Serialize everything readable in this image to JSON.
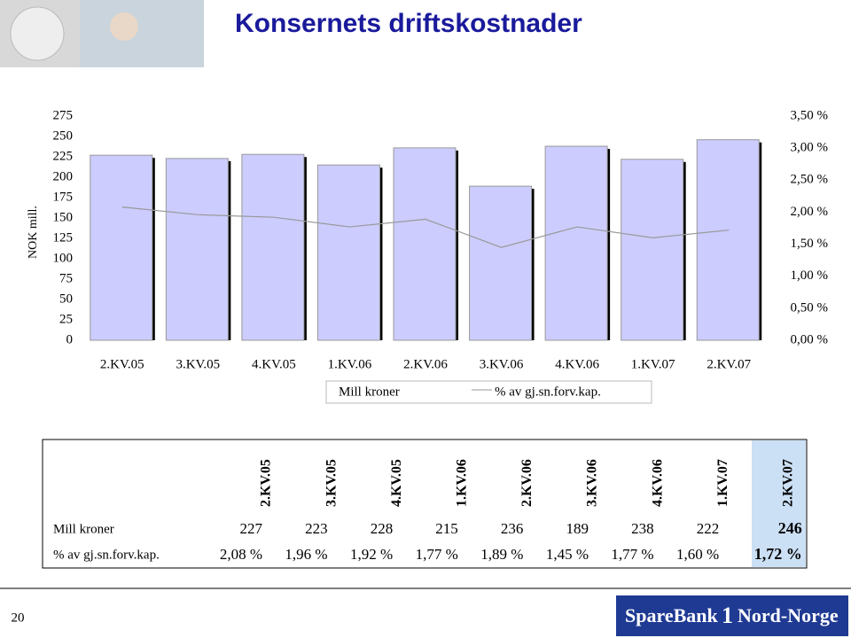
{
  "header": {
    "title": "Konsernets driftskostnader"
  },
  "chart_data": {
    "type": "bar",
    "categories": [
      "2.KV.05",
      "3.KV.05",
      "4.KV.05",
      "1.KV.06",
      "2.KV.06",
      "3.KV.06",
      "4.KV.06",
      "1.KV.07",
      "2.KV.07"
    ],
    "y_label": "NOK mill.",
    "series": [
      {
        "name": "Mill kroner",
        "type": "bar",
        "color": "#ccccff",
        "values": [
          227,
          223,
          228,
          215,
          236,
          189,
          238,
          222,
          246
        ]
      },
      {
        "name": "% av gj.sn.forv.kap.",
        "type": "line",
        "axis": "y2",
        "color": "#999999",
        "values": [
          2.08,
          1.96,
          1.92,
          1.77,
          1.89,
          1.45,
          1.77,
          1.6,
          1.72
        ]
      }
    ],
    "ylim": [
      0,
      275
    ],
    "yticks": [
      0,
      25,
      50,
      75,
      100,
      125,
      150,
      175,
      200,
      225,
      250,
      275
    ],
    "y2lim": [
      0,
      3.5
    ],
    "y2ticks": [
      {
        "value": 0,
        "label": "0,00 %"
      },
      {
        "value": 0.5,
        "label": "0,50 %"
      },
      {
        "value": 1,
        "label": "1,00 %"
      },
      {
        "value": 1.5,
        "label": "1,50 %"
      },
      {
        "value": 2,
        "label": "2,00 %"
      },
      {
        "value": 2.5,
        "label": "2,50 %"
      },
      {
        "value": 3,
        "label": "3,00 %"
      },
      {
        "value": 3.5,
        "label": "3,50 %"
      }
    ],
    "grid": false,
    "legend": "bottom"
  },
  "table": {
    "columns": [
      "2.KV.05",
      "3.KV.05",
      "4.KV.05",
      "1.KV.06",
      "2.KV.06",
      "3.KV.06",
      "4.KV.06",
      "1.KV.07",
      "2.KV.07"
    ],
    "rows": [
      {
        "label": "Mill kroner",
        "cells": [
          "227",
          "223",
          "228",
          "215",
          "236",
          "189",
          "238",
          "222",
          "246"
        ]
      },
      {
        "label": "% av gj.sn.forv.kap.",
        "cells": [
          "2,08 %",
          "1,96 %",
          "1,92 %",
          "1,77 %",
          "1,89 %",
          "1,45 %",
          "1,77 %",
          "1,60 %",
          "1,72 %"
        ]
      }
    ]
  },
  "page_number": "20",
  "logo": {
    "left": "SpareBank",
    "number": "1",
    "right": "Nord-Norge"
  }
}
